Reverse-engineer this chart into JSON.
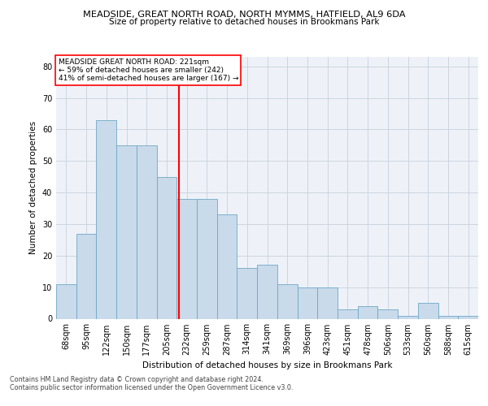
{
  "title1": "MEADSIDE, GREAT NORTH ROAD, NORTH MYMMS, HATFIELD, AL9 6DA",
  "title2": "Size of property relative to detached houses in Brookmans Park",
  "xlabel": "Distribution of detached houses by size in Brookmans Park",
  "ylabel": "Number of detached properties",
  "categories": [
    "68sqm",
    "95sqm",
    "122sqm",
    "150sqm",
    "177sqm",
    "205sqm",
    "232sqm",
    "259sqm",
    "287sqm",
    "314sqm",
    "341sqm",
    "369sqm",
    "396sqm",
    "423sqm",
    "451sqm",
    "478sqm",
    "506sqm",
    "533sqm",
    "560sqm",
    "588sqm",
    "615sqm"
  ],
  "values": [
    11,
    27,
    63,
    55,
    55,
    45,
    38,
    38,
    33,
    16,
    17,
    11,
    10,
    10,
    3,
    4,
    3,
    1,
    5,
    1,
    1
  ],
  "bar_color": "#c9daea",
  "bar_edge_color": "#6fa8c8",
  "annotation_line1": "MEADSIDE GREAT NORTH ROAD: 221sqm",
  "annotation_line2": "← 59% of detached houses are smaller (242)",
  "annotation_line3": "41% of semi-detached houses are larger (167) →",
  "annotation_box_color": "white",
  "annotation_box_edge_color": "red",
  "ref_line_color": "red",
  "ylim": [
    0,
    83
  ],
  "yticks": [
    0,
    10,
    20,
    30,
    40,
    50,
    60,
    70,
    80
  ],
  "grid_color": "#c8d0dc",
  "footnote1": "Contains HM Land Registry data © Crown copyright and database right 2024.",
  "footnote2": "Contains public sector information licensed under the Open Government Licence v3.0.",
  "bg_color": "#eef2f8"
}
